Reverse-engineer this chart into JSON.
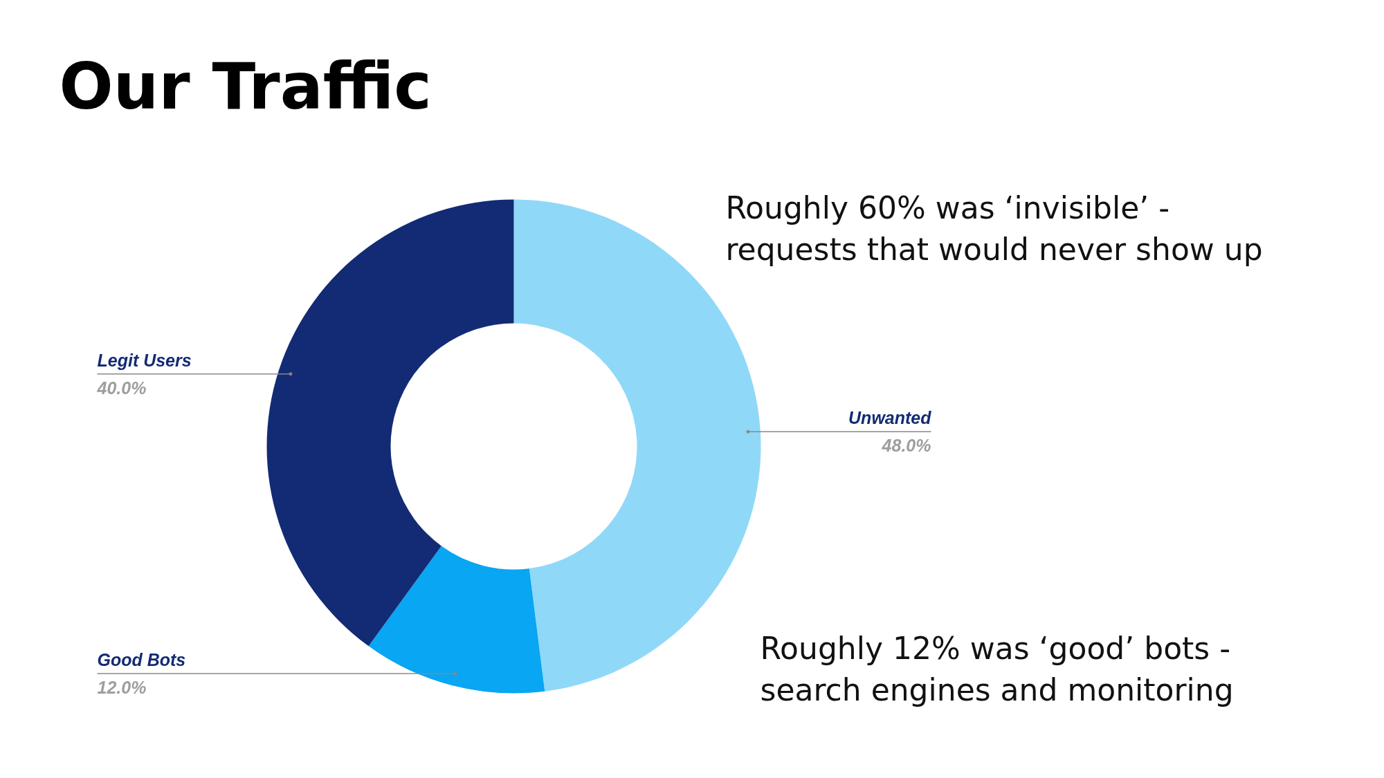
{
  "chart_data": {
    "type": "donut",
    "title": "Our Traffic",
    "categories": [
      "Unwanted",
      "Good Bots",
      "Legit Users"
    ],
    "values": [
      48,
      12,
      40
    ],
    "colors": [
      "#90d8f8",
      "#08a6f3",
      "#132b74"
    ],
    "value_labels": [
      "48.0%",
      "12.0%",
      "40.0%"
    ],
    "annotations": [
      "Roughly 60% was ‘invisible’ - requests that would never show up",
      "Roughly 12% was ‘good’ bots - search engines and monitoring"
    ]
  }
}
